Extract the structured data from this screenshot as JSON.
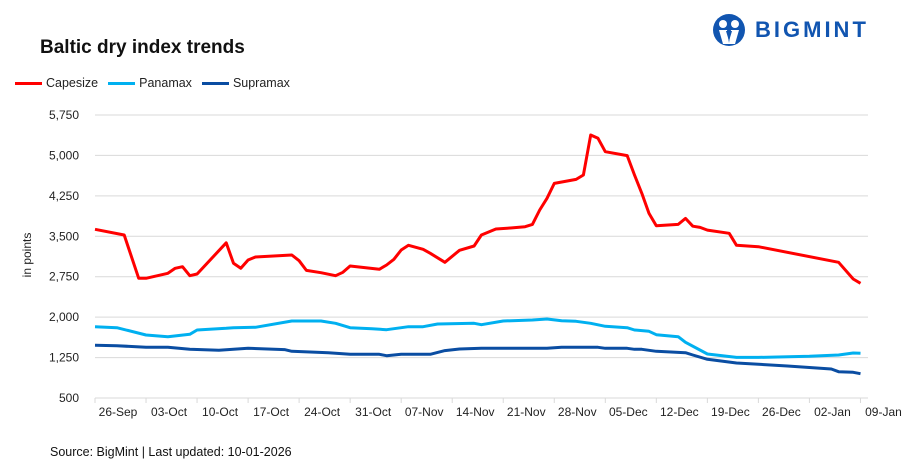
{
  "brand": {
    "name": "BIGMINT",
    "color": "#1155b0"
  },
  "chart_data": {
    "type": "line",
    "title": "Baltic dry index trends",
    "ylabel": "in points",
    "xlabel": "",
    "ylim": [
      500,
      5750
    ],
    "yticks": [
      "500",
      "1,250",
      "2,000",
      "2,750",
      "3,500",
      "4,250",
      "5,000",
      "5,750"
    ],
    "ytick_values": [
      500,
      1250,
      2000,
      2750,
      3500,
      4250,
      5000,
      5750
    ],
    "xlim": [
      "2025-09-26",
      "2026-01-09"
    ],
    "xticks": [
      "26-Sep",
      "03-Oct",
      "10-Oct",
      "17-Oct",
      "24-Oct",
      "31-Oct",
      "07-Nov",
      "14-Nov",
      "21-Nov",
      "28-Nov",
      "05-Dec",
      "12-Dec",
      "19-Dec",
      "26-Dec",
      "02-Jan",
      "09-Jan"
    ],
    "xtick_dates": [
      "2025-09-26",
      "2025-10-03",
      "2025-10-10",
      "2025-10-17",
      "2025-10-24",
      "2025-10-31",
      "2025-11-07",
      "2025-11-14",
      "2025-11-21",
      "2025-11-28",
      "2025-12-05",
      "2025-12-12",
      "2025-12-19",
      "2025-12-26",
      "2026-01-02",
      "2026-01-09"
    ],
    "grid": true,
    "legend_position": "top-left",
    "series": [
      {
        "name": "Capesize",
        "color": "#ff0000",
        "points": [
          [
            "2025-09-26",
            3630
          ],
          [
            "2025-09-30",
            3524
          ],
          [
            "2025-10-02",
            2720
          ],
          [
            "2025-10-03",
            2720
          ],
          [
            "2025-10-06",
            2813
          ],
          [
            "2025-10-07",
            2906
          ],
          [
            "2025-10-08",
            2936
          ],
          [
            "2025-10-09",
            2768
          ],
          [
            "2025-10-10",
            2800
          ],
          [
            "2025-10-14",
            3380
          ],
          [
            "2025-10-15",
            2998
          ],
          [
            "2025-10-16",
            2906
          ],
          [
            "2025-10-17",
            3060
          ],
          [
            "2025-10-18",
            3115
          ],
          [
            "2025-10-23",
            3153
          ],
          [
            "2025-10-24",
            3047
          ],
          [
            "2025-10-25",
            2867
          ],
          [
            "2025-10-27",
            2825
          ],
          [
            "2025-10-29",
            2768
          ],
          [
            "2025-10-30",
            2831
          ],
          [
            "2025-10-31",
            2948
          ],
          [
            "2025-11-04",
            2887
          ],
          [
            "2025-11-05",
            2967
          ],
          [
            "2025-11-06",
            3073
          ],
          [
            "2025-11-07",
            3245
          ],
          [
            "2025-11-08",
            3332
          ],
          [
            "2025-11-10",
            3258
          ],
          [
            "2025-11-11",
            3184
          ],
          [
            "2025-11-13",
            3017
          ],
          [
            "2025-11-15",
            3240
          ],
          [
            "2025-11-17",
            3320
          ],
          [
            "2025-11-18",
            3524
          ],
          [
            "2025-11-20",
            3635
          ],
          [
            "2025-11-22",
            3653
          ],
          [
            "2025-11-24",
            3678
          ],
          [
            "2025-11-25",
            3720
          ],
          [
            "2025-11-26",
            3987
          ],
          [
            "2025-11-27",
            4204
          ],
          [
            "2025-11-28",
            4482
          ],
          [
            "2025-12-01",
            4556
          ],
          [
            "2025-12-02",
            4637
          ],
          [
            "2025-12-03",
            5379
          ],
          [
            "2025-12-04",
            5317
          ],
          [
            "2025-12-05",
            5070
          ],
          [
            "2025-12-08",
            4996
          ],
          [
            "2025-12-09",
            4637
          ],
          [
            "2025-12-10",
            4297
          ],
          [
            "2025-12-11",
            3924
          ],
          [
            "2025-12-12",
            3695
          ],
          [
            "2025-12-15",
            3720
          ],
          [
            "2025-12-16",
            3831
          ],
          [
            "2025-12-17",
            3688
          ],
          [
            "2025-12-18",
            3664
          ],
          [
            "2025-12-19",
            3614
          ],
          [
            "2025-12-22",
            3555
          ],
          [
            "2025-12-23",
            3332
          ],
          [
            "2025-12-26",
            3307
          ],
          [
            "2026-01-06",
            3017
          ],
          [
            "2026-01-08",
            2707
          ],
          [
            "2026-01-09",
            2628
          ]
        ]
      },
      {
        "name": "Panamax",
        "color": "#00b0f0",
        "points": [
          [
            "2025-09-26",
            1823
          ],
          [
            "2025-09-29",
            1804
          ],
          [
            "2025-10-03",
            1669
          ],
          [
            "2025-10-06",
            1637
          ],
          [
            "2025-10-09",
            1682
          ],
          [
            "2025-10-10",
            1761
          ],
          [
            "2025-10-14",
            1793
          ],
          [
            "2025-10-15",
            1804
          ],
          [
            "2025-10-18",
            1811
          ],
          [
            "2025-10-23",
            1928
          ],
          [
            "2025-10-27",
            1928
          ],
          [
            "2025-10-29",
            1886
          ],
          [
            "2025-10-31",
            1804
          ],
          [
            "2025-11-03",
            1786
          ],
          [
            "2025-11-05",
            1767
          ],
          [
            "2025-11-08",
            1823
          ],
          [
            "2025-11-10",
            1823
          ],
          [
            "2025-11-12",
            1873
          ],
          [
            "2025-11-17",
            1886
          ],
          [
            "2025-11-18",
            1860
          ],
          [
            "2025-11-21",
            1928
          ],
          [
            "2025-11-25",
            1947
          ],
          [
            "2025-11-27",
            1965
          ],
          [
            "2025-11-29",
            1934
          ],
          [
            "2025-12-01",
            1922
          ],
          [
            "2025-12-03",
            1886
          ],
          [
            "2025-12-05",
            1830
          ],
          [
            "2025-12-08",
            1804
          ],
          [
            "2025-12-09",
            1761
          ],
          [
            "2025-12-11",
            1737
          ],
          [
            "2025-12-12",
            1674
          ],
          [
            "2025-12-15",
            1637
          ],
          [
            "2025-12-16",
            1533
          ],
          [
            "2025-12-19",
            1316
          ],
          [
            "2025-12-23",
            1254
          ],
          [
            "2025-12-26",
            1254
          ],
          [
            "2026-01-02",
            1273
          ],
          [
            "2026-01-06",
            1298
          ],
          [
            "2026-01-08",
            1335
          ],
          [
            "2026-01-09",
            1329
          ]
        ]
      },
      {
        "name": "Supramax",
        "color": "#0a4da2",
        "points": [
          [
            "2025-09-26",
            1478
          ],
          [
            "2025-09-29",
            1470
          ],
          [
            "2025-10-03",
            1440
          ],
          [
            "2025-10-06",
            1440
          ],
          [
            "2025-10-09",
            1403
          ],
          [
            "2025-10-13",
            1385
          ],
          [
            "2025-10-15",
            1403
          ],
          [
            "2025-10-17",
            1422
          ],
          [
            "2025-10-22",
            1397
          ],
          [
            "2025-10-23",
            1366
          ],
          [
            "2025-10-28",
            1341
          ],
          [
            "2025-10-31",
            1311
          ],
          [
            "2025-11-04",
            1311
          ],
          [
            "2025-11-05",
            1285
          ],
          [
            "2025-11-07",
            1311
          ],
          [
            "2025-11-11",
            1311
          ],
          [
            "2025-11-13",
            1379
          ],
          [
            "2025-11-15",
            1409
          ],
          [
            "2025-11-18",
            1422
          ],
          [
            "2025-11-27",
            1422
          ],
          [
            "2025-11-29",
            1440
          ],
          [
            "2025-12-04",
            1440
          ],
          [
            "2025-12-05",
            1422
          ],
          [
            "2025-12-08",
            1422
          ],
          [
            "2025-12-09",
            1403
          ],
          [
            "2025-12-10",
            1403
          ],
          [
            "2025-12-12",
            1366
          ],
          [
            "2025-12-16",
            1341
          ],
          [
            "2025-12-17",
            1298
          ],
          [
            "2025-12-19",
            1218
          ],
          [
            "2025-12-23",
            1149
          ],
          [
            "2025-12-30",
            1094
          ],
          [
            "2026-01-05",
            1038
          ],
          [
            "2026-01-06",
            988
          ],
          [
            "2026-01-08",
            976
          ],
          [
            "2026-01-09",
            951
          ]
        ]
      }
    ]
  },
  "footer": {
    "source": "Source: BigMint | Last updated: 10-01-2026"
  }
}
